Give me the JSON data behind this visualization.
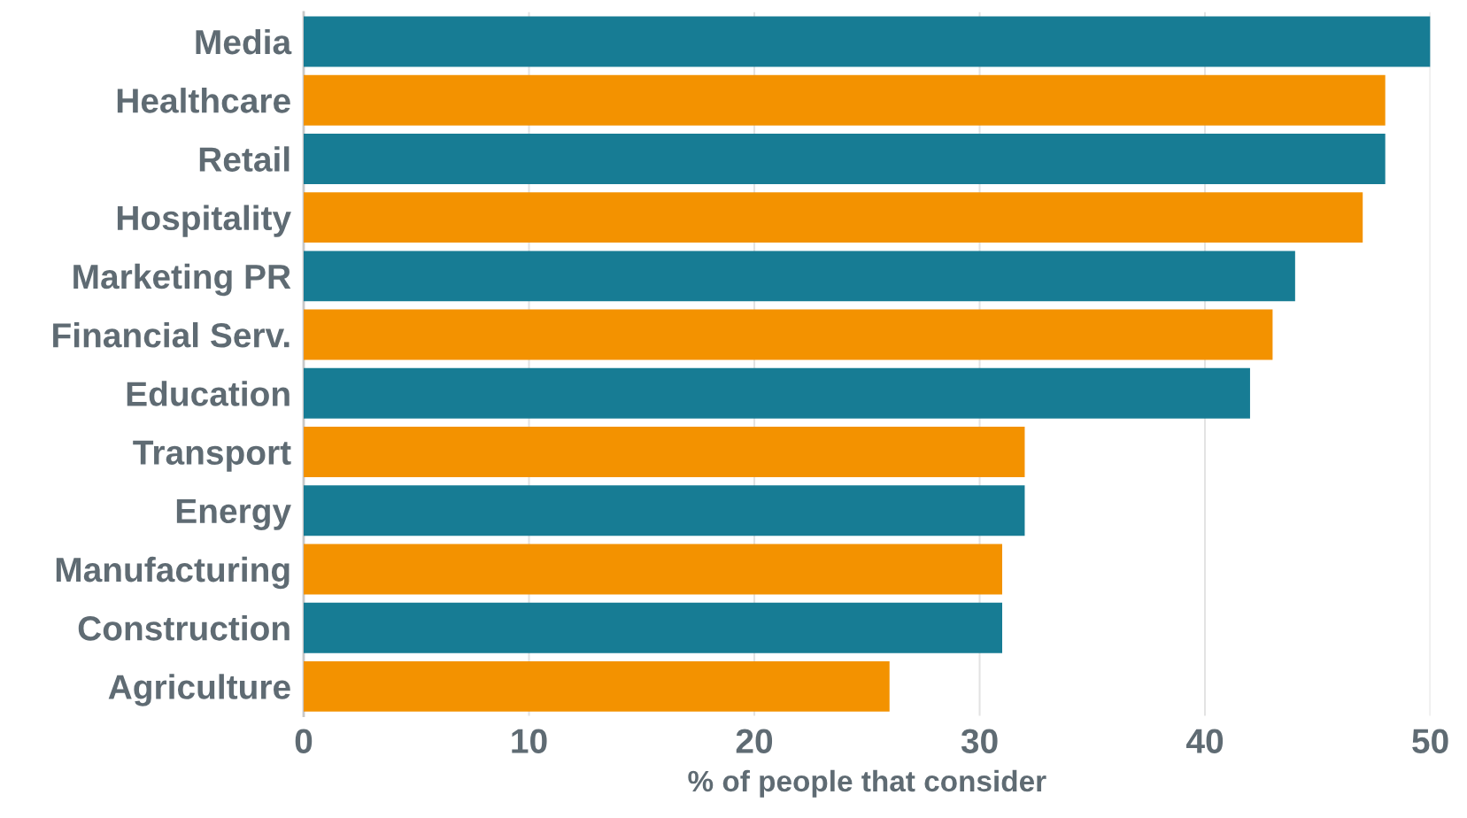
{
  "chart_data": {
    "type": "bar",
    "orientation": "horizontal",
    "xlabel": "% of people that consider",
    "categories": [
      "Media",
      "Healthcare",
      "Retail",
      "Hospitality",
      "Marketing PR",
      "Financial Serv.",
      "Education",
      "Transport",
      "Energy",
      "Manufacturing",
      "Construction",
      "Agriculture"
    ],
    "values": [
      50,
      48,
      48,
      47,
      44,
      43,
      42,
      32,
      32,
      31,
      31,
      26
    ],
    "colors": [
      "#177c94",
      "#f39200",
      "#177c94",
      "#f39200",
      "#177c94",
      "#f39200",
      "#177c94",
      "#f39200",
      "#177c94",
      "#f39200",
      "#177c94",
      "#f39200"
    ],
    "xlim": [
      0,
      50
    ],
    "xticks": [
      0,
      10,
      20,
      30,
      40,
      50
    ],
    "grid": "x"
  }
}
